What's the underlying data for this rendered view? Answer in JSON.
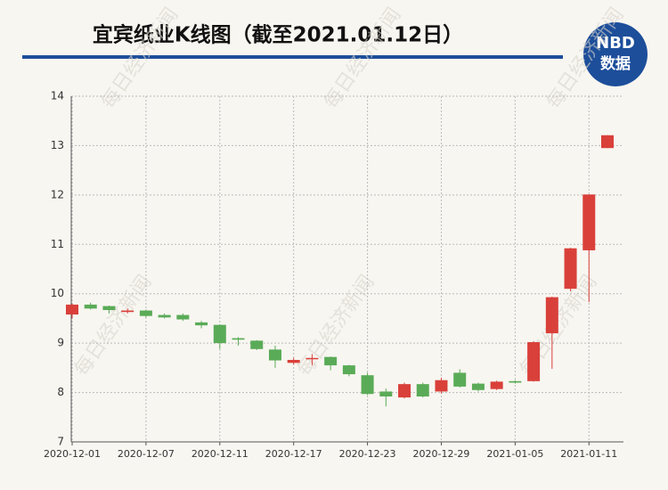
{
  "chart_data": {
    "type": "candlestick",
    "title": "宜宾纸业K线图（截至2021.01.12日）",
    "logo": {
      "top": "NBD",
      "bottom": "数据"
    },
    "watermark": "每日经济新闻",
    "categories": [
      "2020-12-01",
      null,
      null,
      null,
      "2020-12-07",
      null,
      null,
      null,
      "2020-12-11",
      null,
      null,
      null,
      "2020-12-17",
      null,
      null,
      null,
      "2020-12-23",
      null,
      null,
      null,
      "2020-12-29",
      null,
      null,
      null,
      "2021-01-05",
      null,
      null,
      null,
      "2021-01-11",
      null
    ],
    "open": [
      9.58,
      9.78,
      9.75,
      9.63,
      9.66,
      9.57,
      9.57,
      9.42,
      9.37,
      9.1,
      9.05,
      8.87,
      8.6,
      8.68,
      8.72,
      8.55,
      8.35,
      8.02,
      7.9,
      8.17,
      8.02,
      8.4,
      8.18,
      8.07,
      8.23,
      8.23,
      9.2,
      10.1,
      10.88,
      12.95
    ],
    "high": [
      9.8,
      9.82,
      9.76,
      9.7,
      9.68,
      9.6,
      9.6,
      9.45,
      9.38,
      9.12,
      9.06,
      8.95,
      8.7,
      8.78,
      8.73,
      8.56,
      8.4,
      8.08,
      8.2,
      8.2,
      8.3,
      8.47,
      8.2,
      8.24,
      8.25,
      9.04,
      9.94,
      10.93,
      12.01,
      13.21
    ],
    "low": [
      9.5,
      9.68,
      9.6,
      9.6,
      9.52,
      9.5,
      9.45,
      9.3,
      8.88,
      8.95,
      8.86,
      8.5,
      8.57,
      8.55,
      8.45,
      8.33,
      7.95,
      7.72,
      7.88,
      7.9,
      7.98,
      8.1,
      8.02,
      8.05,
      8.18,
      8.22,
      8.48,
      10.05,
      9.83,
      12.95
    ],
    "close": [
      9.78,
      9.7,
      9.67,
      9.66,
      9.55,
      9.52,
      9.48,
      9.36,
      9.0,
      9.07,
      8.88,
      8.65,
      8.66,
      8.7,
      8.55,
      8.37,
      7.97,
      7.92,
      8.17,
      7.92,
      8.25,
      8.12,
      8.05,
      8.22,
      8.2,
      9.02,
      9.93,
      10.92,
      12.01,
      13.21
    ],
    "up_color": "#d9403a",
    "down_color": "#5aab57",
    "ylim": [
      7,
      14
    ],
    "yticks": [
      7,
      8,
      9,
      10,
      11,
      12,
      13,
      14
    ],
    "grid": true
  }
}
